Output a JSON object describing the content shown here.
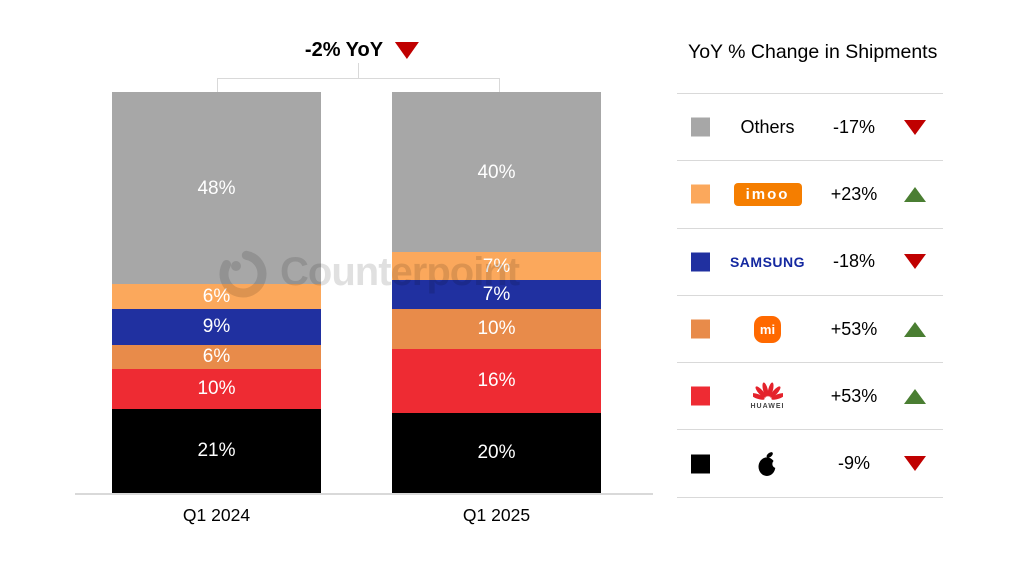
{
  "annotation": {
    "label": "-2% YoY",
    "direction": "down"
  },
  "watermark": {
    "text": "Counterpoint"
  },
  "legend": {
    "header": "YoY % Change in Shipments",
    "rows": [
      {
        "name": "Others",
        "logo_text": "Others",
        "change": "-17%",
        "direction": "down",
        "color": "#A7A7A7"
      },
      {
        "name": "imoo",
        "logo_text": "imoo",
        "change": "+23%",
        "direction": "up",
        "color": "#FBA85C"
      },
      {
        "name": "Samsung",
        "logo_text": "SAMSUNG",
        "change": "-18%",
        "direction": "down",
        "color": "#2030A0"
      },
      {
        "name": "Xiaomi",
        "logo_text": "mi",
        "change": "+53%",
        "direction": "up",
        "color": "#E88B4A"
      },
      {
        "name": "Huawei",
        "logo_text": "HUAWEI",
        "change": "+53%",
        "direction": "up",
        "color": "#EE2B33"
      },
      {
        "name": "Apple",
        "logo_text": "",
        "change": "-9%",
        "direction": "down",
        "color": "#000000"
      }
    ]
  },
  "chart_data": {
    "type": "bar",
    "stacked": true,
    "unit": "%",
    "title": "-2% YoY",
    "categories": [
      "Q1 2024",
      "Q1 2025"
    ],
    "series_order": "top-to-bottom",
    "series": [
      {
        "name": "Others",
        "color": "#A7A7A7",
        "values": [
          48,
          40
        ]
      },
      {
        "name": "imoo",
        "color": "#FBA85C",
        "values": [
          6,
          7
        ]
      },
      {
        "name": "Samsung",
        "color": "#2030A0",
        "values": [
          9,
          7
        ]
      },
      {
        "name": "Xiaomi",
        "color": "#E88B4A",
        "values": [
          6,
          10
        ]
      },
      {
        "name": "Huawei",
        "color": "#EE2B33",
        "values": [
          10,
          16
        ]
      },
      {
        "name": "Apple",
        "color": "#000000",
        "values": [
          21,
          20
        ]
      }
    ],
    "yoy_total_change": "-2%",
    "ylim": [
      0,
      100
    ],
    "grid": false,
    "legend_position": "right",
    "legend_title": "YoY % Change in Shipments"
  },
  "colors": {
    "negative": "#C00000",
    "positive": "#4A7E32",
    "axis_line": "#D9D9D9"
  }
}
